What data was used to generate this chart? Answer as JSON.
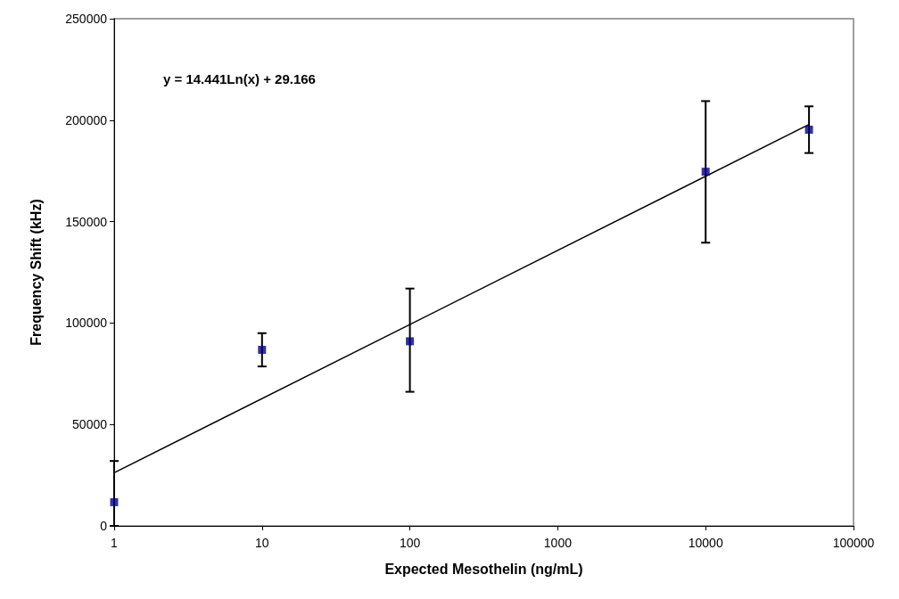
{
  "chart_data": {
    "type": "scatter",
    "xlabel": "Expected Mesothelin (ng/mL)",
    "ylabel": "Frequency Shift (kHz)",
    "annotations": [
      "y = 14.441Ln(x) + 29.166"
    ],
    "log": "x",
    "xlim": [
      1,
      100000
    ],
    "xticks": [
      1,
      10,
      100,
      1000,
      10000,
      100000
    ],
    "ylim": [
      0,
      250000
    ],
    "yticks": [
      0,
      50000,
      100000,
      150000,
      200000,
      250000
    ],
    "grid": false,
    "marker": "square",
    "series": [
      {
        "type": "scatter",
        "color": "#000080",
        "x": [
          1,
          10,
          100,
          10000,
          50000
        ],
        "values": [
          11700,
          86800,
          91000,
          174600,
          195300
        ],
        "errors": [
          [
            0,
            32000
          ],
          [
            78600,
            95000
          ],
          [
            66100,
            117000
          ],
          [
            139600,
            209400
          ],
          [
            183800,
            206800
          ]
        ]
      },
      {
        "type": "line",
        "color": "#000000",
        "marker": "none",
        "x": [
          1,
          50000
        ],
        "values": [
          26200,
          197900
        ]
      }
    ]
  }
}
